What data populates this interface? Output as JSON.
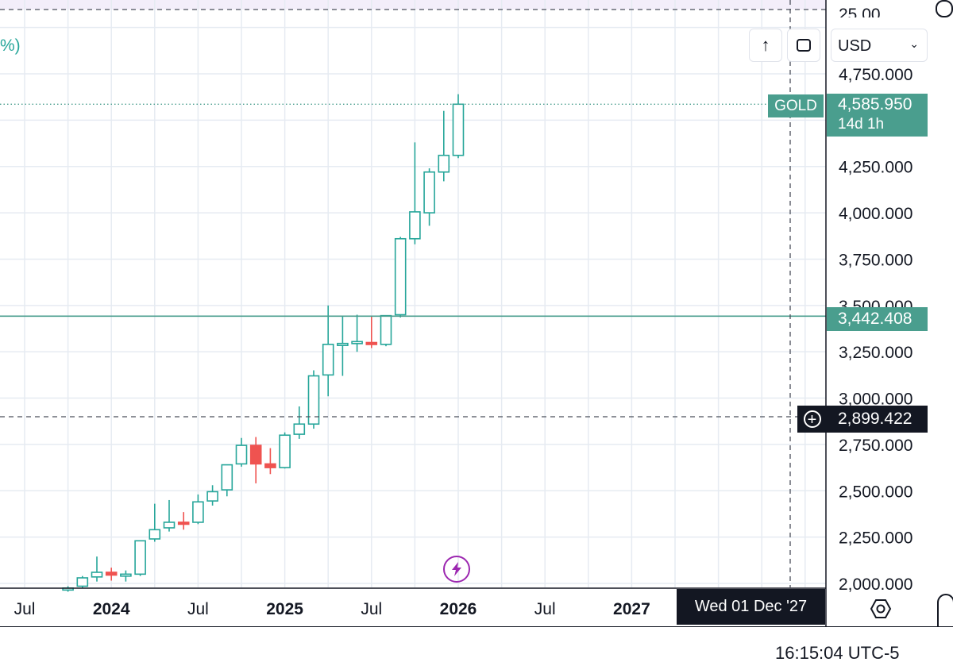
{
  "top_left_text": "%)",
  "currency_select": {
    "value": "USD"
  },
  "buttons": {
    "scroll_up": "↑",
    "fullscreen": "▢"
  },
  "gold_label": {
    "symbol": "GOLD",
    "price": "4,585.950",
    "countdown": "14d 1h"
  },
  "hline_tag": "3,442.408",
  "crosshair_tag": "2,899.422",
  "crosshair_date": "Wed 01 Dec '27",
  "clock": "16:15:04 UTC-5",
  "top_partial_label": "25.00",
  "colors": {
    "up": "#26a69a",
    "down": "#ef5350",
    "teal": "#4a9e8e",
    "tag_dark": "#131722",
    "grid": "#e6ebf2",
    "purple": "#9c27b0"
  },
  "chart_data": {
    "type": "candlestick",
    "symbol": "GOLD",
    "interval": "1M",
    "currency": "USD",
    "y_ticks": [
      "2,000.000",
      "2,250.000",
      "2,500.000",
      "2,750.000",
      "3,000.000",
      "3,250.000",
      "3,500.000",
      "3,750.000",
      "4,000.000",
      "4,250.000",
      "4,750.000"
    ],
    "y_tick_values": [
      2000,
      2250,
      2500,
      2750,
      3000,
      3250,
      3500,
      3750,
      4000,
      4250,
      4750
    ],
    "x_ticks": [
      {
        "label": "Jul",
        "bold": false,
        "month_index": 0
      },
      {
        "label": "2024",
        "bold": true,
        "month_index": 6
      },
      {
        "label": "Jul",
        "bold": false,
        "month_index": 12
      },
      {
        "label": "2025",
        "bold": true,
        "month_index": 18
      },
      {
        "label": "Jul",
        "bold": false,
        "month_index": 24
      },
      {
        "label": "2026",
        "bold": true,
        "month_index": 30
      },
      {
        "label": "Jul",
        "bold": false,
        "month_index": 36
      },
      {
        "label": "2027",
        "bold": true,
        "month_index": 42
      }
    ],
    "candles": [
      {
        "m": 3,
        "o": 1970,
        "h": 1985,
        "l": 1955,
        "c": 1975
      },
      {
        "m": 4,
        "o": 1985,
        "h": 2040,
        "l": 1975,
        "c": 2030
      },
      {
        "m": 5,
        "o": 2035,
        "h": 2145,
        "l": 2010,
        "c": 2060
      },
      {
        "m": 6,
        "o": 2060,
        "h": 2085,
        "l": 2015,
        "c": 2045
      },
      {
        "m": 7,
        "o": 2045,
        "h": 2070,
        "l": 2010,
        "c": 2050
      },
      {
        "m": 8,
        "o": 2050,
        "h": 2230,
        "l": 2040,
        "c": 2230
      },
      {
        "m": 9,
        "o": 2240,
        "h": 2430,
        "l": 2225,
        "c": 2290
      },
      {
        "m": 10,
        "o": 2300,
        "h": 2450,
        "l": 2280,
        "c": 2330
      },
      {
        "m": 11,
        "o": 2330,
        "h": 2385,
        "l": 2290,
        "c": 2325
      },
      {
        "m": 12,
        "o": 2330,
        "h": 2480,
        "l": 2320,
        "c": 2440
      },
      {
        "m": 13,
        "o": 2445,
        "h": 2530,
        "l": 2420,
        "c": 2495
      },
      {
        "m": 14,
        "o": 2505,
        "h": 2640,
        "l": 2470,
        "c": 2640
      },
      {
        "m": 15,
        "o": 2645,
        "h": 2785,
        "l": 2630,
        "c": 2745
      },
      {
        "m": 16,
        "o": 2745,
        "h": 2790,
        "l": 2540,
        "c": 2645
      },
      {
        "m": 17,
        "o": 2645,
        "h": 2730,
        "l": 2590,
        "c": 2625
      },
      {
        "m": 18,
        "o": 2625,
        "h": 2815,
        "l": 2620,
        "c": 2800
      },
      {
        "m": 19,
        "o": 2805,
        "h": 2955,
        "l": 2780,
        "c": 2860
      },
      {
        "m": 20,
        "o": 2860,
        "h": 3150,
        "l": 2835,
        "c": 3120
      },
      {
        "m": 21,
        "o": 3125,
        "h": 3500,
        "l": 3010,
        "c": 3290
      },
      {
        "m": 22,
        "o": 3290,
        "h": 3440,
        "l": 3120,
        "c": 3295
      },
      {
        "m": 23,
        "o": 3295,
        "h": 3450,
        "l": 3250,
        "c": 3305
      },
      {
        "m": 24,
        "o": 3300,
        "h": 3440,
        "l": 3270,
        "c": 3290
      },
      {
        "m": 25,
        "o": 3290,
        "h": 3440,
        "l": 3280,
        "c": 3445
      },
      {
        "m": 26,
        "o": 3450,
        "h": 3870,
        "l": 3435,
        "c": 3860
      },
      {
        "m": 27,
        "o": 3860,
        "h": 4380,
        "l": 3830,
        "c": 4005
      },
      {
        "m": 28,
        "o": 4000,
        "h": 4240,
        "l": 3930,
        "c": 4220
      },
      {
        "m": 29,
        "o": 4220,
        "h": 4550,
        "l": 4170,
        "c": 4310
      },
      {
        "m": 30,
        "o": 4310,
        "h": 4640,
        "l": 4295,
        "c": 4586
      }
    ],
    "current_price": 4585.95,
    "horizontal_line": 3442.408,
    "crosshair_price": 2899.422
  }
}
